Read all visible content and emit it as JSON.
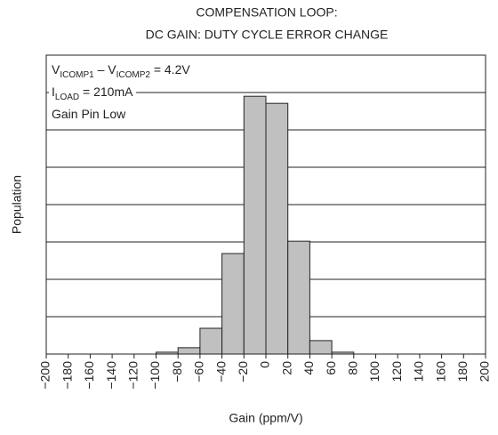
{
  "chart_data": {
    "type": "histogram",
    "title": [
      "COMPENSATION LOOP:",
      "DC GAIN: DUTY CYCLE ERROR CHANGE"
    ],
    "x_label": "Gain (ppm/V)",
    "y_label": "Population",
    "annotations": [
      [
        "V",
        "ICOMP1",
        " – V",
        "ICOMP2",
        " = 4.2V"
      ],
      [
        "I",
        "LOAD",
        " = 210mA"
      ],
      [
        "Gain Pin Low"
      ]
    ],
    "bins": [
      -100,
      -80,
      -60,
      -40,
      -20,
      0,
      20,
      40,
      60,
      80
    ],
    "values": [
      0.05,
      0.17,
      0.69,
      2.69,
      6.9,
      6.71,
      3.02,
      0.36,
      0.05
    ],
    "color": "#c0c0c0",
    "xlim": [
      -200,
      200
    ],
    "xticks": [
      {
        "value": -200,
        "label": "−200"
      },
      {
        "value": -180,
        "label": "−180"
      },
      {
        "value": -160,
        "label": "−160"
      },
      {
        "value": -140,
        "label": "−140"
      },
      {
        "value": -120,
        "label": "−120"
      },
      {
        "value": -100,
        "label": "−100"
      },
      {
        "value": -80,
        "label": "−80"
      },
      {
        "value": -60,
        "label": "−60"
      },
      {
        "value": -40,
        "label": "−40"
      },
      {
        "value": -20,
        "label": "−20"
      },
      0,
      20,
      40,
      60,
      80,
      100,
      120,
      140,
      160,
      180,
      200
    ],
    "ylim": [
      0,
      8
    ],
    "yticks": [
      0,
      1,
      2,
      3,
      4,
      5,
      6,
      7,
      8
    ],
    "grid": true
  }
}
